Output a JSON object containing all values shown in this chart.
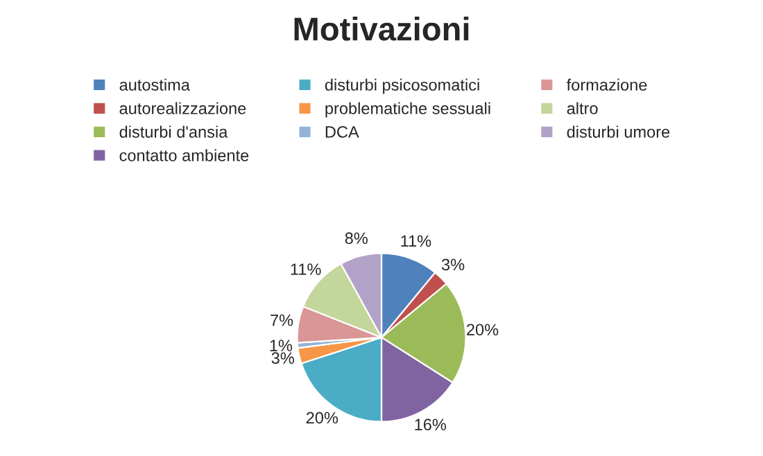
{
  "chart_data": {
    "type": "pie",
    "title": "Motivazioni",
    "categories": [
      "autostima",
      "autorealizzazione",
      "disturbi d'ansia",
      "contatto ambiente",
      "disturbi psicosomatici",
      "problematiche sessuali",
      "DCA",
      "formazione",
      "altro",
      "disturbi umore"
    ],
    "values": [
      11,
      3,
      20,
      16,
      20,
      3,
      1,
      7,
      11,
      8
    ],
    "value_labels": [
      "11%",
      "3%",
      "20%",
      "16%",
      "20%",
      "3%",
      "1%",
      "7%",
      "11%",
      "8%"
    ],
    "colors": [
      "#4f81bd",
      "#c0504d",
      "#9bbb59",
      "#8064a2",
      "#4bacc6",
      "#f79646",
      "#95b3d7",
      "#d99694",
      "#c3d69b",
      "#b3a2c7"
    ],
    "legend": "top"
  }
}
